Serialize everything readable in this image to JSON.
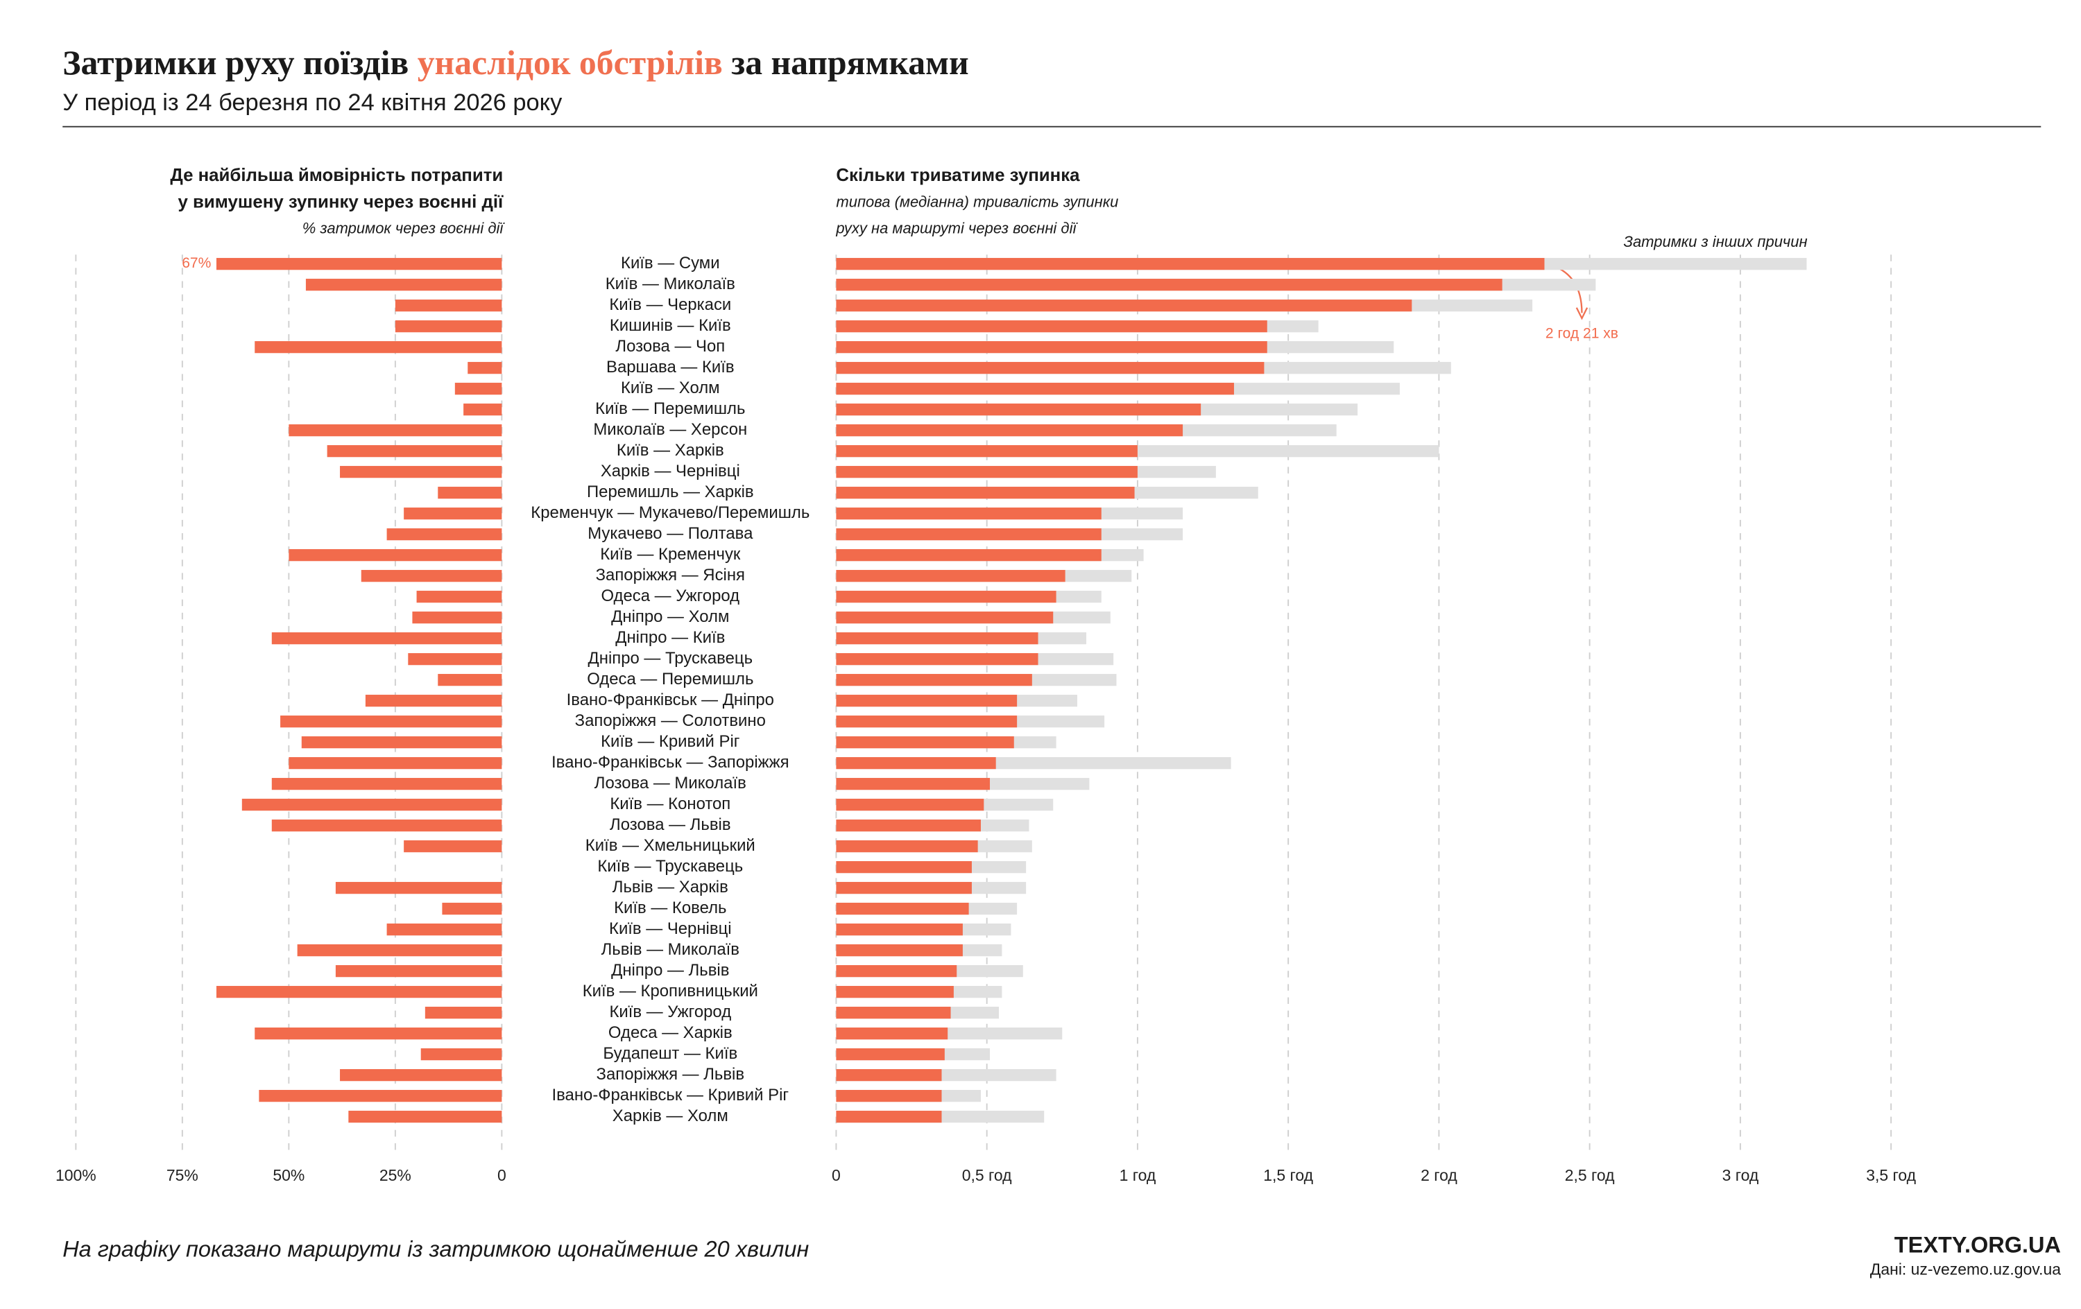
{
  "header": {
    "title": [
      "Затримки руху поїздів",
      "унаслідок обстрілів",
      "за напрямками"
    ],
    "subtitle": "У період із 24 березня по 24 квітня 2026 року"
  },
  "footer": {
    "note": "На графіку показано маршрути із затримкою щонайменше 20 хвилин",
    "brand": "TEXTY.ORG.UA",
    "source": "Дані: uz-vezemo.uz.gov.ua"
  },
  "chart_data": [
    {
      "type": "bar",
      "orientation": "horizontal",
      "title": [
        "Де найбільша ймовірність потрапити",
        "у вимушену зупинку через воєнні дії"
      ],
      "xlabel": "% затримок через воєнні дії",
      "categories": [
        "Київ — Суми",
        "Київ — Миколаїв",
        "Київ — Черкаси",
        "Кишинів — Київ",
        "Лозова — Чоп",
        "Варшава — Київ",
        "Київ — Холм",
        "Київ — Перемишль",
        "Миколаїв — Херсон",
        "Київ — Харків",
        "Харків — Чернівці",
        "Перемишль — Харків",
        "Кременчук — Мукачево/Перемишль",
        "Мукачево — Полтава",
        "Київ — Кременчук",
        "Запоріжжя — Ясіня",
        "Одеса — Ужгород",
        "Дніпро — Холм",
        "Дніпро — Київ",
        "Дніпро — Трускавець",
        "Одеса — Перемишль",
        "Івано-Франківськ — Дніпро",
        "Запоріжжя — Солотвино",
        "Київ — Кривий Ріг",
        "Івано-Франківськ — Запоріжжя",
        "Лозова — Миколаїв",
        "Київ — Конотоп",
        "Лозова — Львів",
        "Київ — Хмельницький",
        "Київ — Трускавець",
        "Львів — Харків",
        "Київ — Ковель",
        "Київ — Чернівці",
        "Львів — Миколаїв",
        "Дніпро — Львів",
        "Київ — Кропивницький",
        "Київ — Ужгород",
        "Одеса — Харків",
        "Будапешт — Київ",
        "Запоріжжя — Львів",
        "Івано-Франківськ — Кривий Ріг",
        "Харків — Холм"
      ],
      "values": [
        67,
        46,
        25,
        25,
        58,
        8,
        11,
        9,
        50,
        41,
        38,
        15,
        23,
        27,
        50,
        33,
        20,
        21,
        54,
        22,
        15,
        32,
        52,
        47,
        50,
        54,
        61,
        54,
        23,
        0,
        39,
        14,
        27,
        48,
        39,
        67,
        18,
        58,
        19,
        38,
        57,
        36
      ],
      "value_labels": [
        "67%",
        null,
        null,
        null,
        null,
        null,
        null,
        null,
        null,
        null,
        null,
        null,
        null,
        null,
        null,
        null,
        null,
        null,
        null,
        null,
        null,
        null,
        null,
        null,
        null,
        null,
        null,
        null,
        null,
        null,
        null,
        null,
        null,
        null,
        null,
        null,
        null,
        null,
        null,
        null,
        null,
        null
      ],
      "color": "#f26b4c",
      "xlim": [
        100,
        0
      ],
      "xticks": [
        {
          "value": 100,
          "label": "100%"
        },
        {
          "value": 75,
          "label": "75%"
        },
        {
          "value": 50,
          "label": "50%"
        },
        {
          "value": 25,
          "label": "25%"
        },
        0
      ],
      "grid": true
    },
    {
      "type": "bar",
      "orientation": "horizontal",
      "layout": "overlap",
      "title": "Скільки триватиме зупинка",
      "subtitle": [
        "типова (медіанна) тривалість зупинки",
        "руху на маршруті через воєнні дії"
      ],
      "series": [
        {
          "name": "Затримки з інших причин",
          "color": "#e0e0e0",
          "values": [
            3.22,
            2.52,
            2.31,
            1.6,
            1.85,
            2.04,
            1.87,
            1.73,
            1.66,
            2.0,
            1.26,
            1.4,
            1.15,
            1.15,
            1.02,
            0.98,
            0.88,
            0.91,
            0.83,
            0.92,
            0.93,
            0.8,
            0.89,
            0.73,
            1.31,
            0.84,
            0.72,
            0.64,
            0.65,
            0.63,
            0.63,
            0.6,
            0.58,
            0.55,
            0.62,
            0.55,
            0.54,
            0.75,
            0.51,
            0.73,
            0.48,
            0.69
          ]
        },
        {
          "color": "#f26b4c",
          "values": [
            2.35,
            2.21,
            1.91,
            1.43,
            1.43,
            1.42,
            1.32,
            1.21,
            1.15,
            1.0,
            1.0,
            0.99,
            0.88,
            0.88,
            0.88,
            0.76,
            0.73,
            0.72,
            0.67,
            0.67,
            0.65,
            0.6,
            0.6,
            0.59,
            0.53,
            0.51,
            0.49,
            0.48,
            0.47,
            0.45,
            0.45,
            0.44,
            0.42,
            0.42,
            0.4,
            0.39,
            0.38,
            0.37,
            0.36,
            0.35,
            0.35,
            0.35
          ],
          "value_labels": [
            "2 год 21 хв",
            null,
            null,
            null,
            null,
            null,
            null,
            null,
            null,
            null,
            null,
            null,
            null,
            null,
            null,
            null,
            null,
            null,
            null,
            null,
            null,
            null,
            null,
            null,
            null,
            null,
            null,
            null,
            null,
            null,
            null,
            null,
            null,
            null,
            null,
            null,
            null,
            null,
            null,
            null,
            null,
            null
          ]
        }
      ],
      "xlim": [
        0,
        3.5
      ],
      "xticks": [
        0,
        {
          "value": 0.5,
          "label": "0,5 год"
        },
        {
          "value": 1,
          "label": "1 год"
        },
        {
          "value": 1.5,
          "label": "1,5 год"
        },
        {
          "value": 2,
          "label": "2 год"
        },
        {
          "value": 2.5,
          "label": "2,5 год"
        },
        {
          "value": 3,
          "label": "3 год"
        },
        {
          "value": 3.5,
          "label": "3,5 год"
        }
      ],
      "grid": true
    }
  ]
}
